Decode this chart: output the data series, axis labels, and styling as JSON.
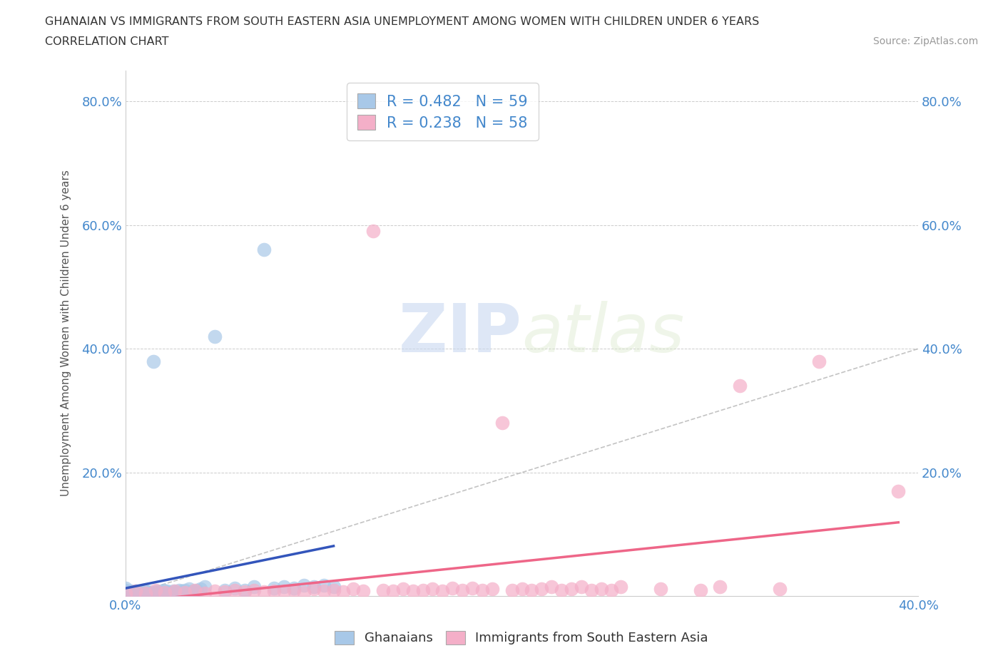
{
  "title_line1": "GHANAIAN VS IMMIGRANTS FROM SOUTH EASTERN ASIA UNEMPLOYMENT AMONG WOMEN WITH CHILDREN UNDER 6 YEARS",
  "title_line2": "CORRELATION CHART",
  "source": "Source: ZipAtlas.com",
  "ylabel": "Unemployment Among Women with Children Under 6 years",
  "xlim": [
    0.0,
    0.4
  ],
  "ylim": [
    0.0,
    0.85
  ],
  "xtick_vals": [
    0.0,
    0.1,
    0.2,
    0.3,
    0.4
  ],
  "ytick_vals": [
    0.0,
    0.2,
    0.4,
    0.6,
    0.8
  ],
  "blue_R": 0.482,
  "blue_N": 59,
  "pink_R": 0.238,
  "pink_N": 58,
  "blue_color": "#a8c8e8",
  "pink_color": "#f4afc8",
  "blue_line_color": "#3355bb",
  "pink_line_color": "#ee6688",
  "diagonal_color": "#aaaaaa",
  "tick_label_color": "#4488cc",
  "background_color": "#ffffff",
  "blue_scatter_x": [
    0.0,
    0.0,
    0.0,
    0.0,
    0.0,
    0.0,
    0.001,
    0.001,
    0.002,
    0.002,
    0.003,
    0.003,
    0.004,
    0.004,
    0.005,
    0.005,
    0.006,
    0.007,
    0.008,
    0.008,
    0.009,
    0.01,
    0.01,
    0.011,
    0.012,
    0.013,
    0.014,
    0.015,
    0.016,
    0.017,
    0.018,
    0.019,
    0.02,
    0.021,
    0.022,
    0.024,
    0.025,
    0.027,
    0.028,
    0.029,
    0.03,
    0.032,
    0.034,
    0.036,
    0.038,
    0.04,
    0.045,
    0.05,
    0.055,
    0.06,
    0.065,
    0.07,
    0.075,
    0.08,
    0.085,
    0.09,
    0.095,
    0.1,
    0.105
  ],
  "blue_scatter_y": [
    0.0,
    0.003,
    0.005,
    0.008,
    0.01,
    0.013,
    0.0,
    0.005,
    0.0,
    0.007,
    0.003,
    0.008,
    0.0,
    0.005,
    0.002,
    0.008,
    0.004,
    0.006,
    0.0,
    0.007,
    0.005,
    0.003,
    0.009,
    0.005,
    0.007,
    0.004,
    0.38,
    0.006,
    0.008,
    0.005,
    0.007,
    0.01,
    0.005,
    0.008,
    0.006,
    0.009,
    0.007,
    0.01,
    0.008,
    0.006,
    0.01,
    0.012,
    0.008,
    0.01,
    0.012,
    0.015,
    0.42,
    0.01,
    0.013,
    0.01,
    0.015,
    0.56,
    0.013,
    0.015,
    0.013,
    0.018,
    0.015,
    0.018,
    0.015
  ],
  "pink_scatter_x": [
    0.0,
    0.005,
    0.01,
    0.015,
    0.02,
    0.025,
    0.03,
    0.035,
    0.04,
    0.045,
    0.05,
    0.055,
    0.06,
    0.065,
    0.07,
    0.075,
    0.08,
    0.085,
    0.09,
    0.095,
    0.1,
    0.105,
    0.11,
    0.115,
    0.12,
    0.125,
    0.13,
    0.135,
    0.14,
    0.145,
    0.15,
    0.155,
    0.16,
    0.165,
    0.17,
    0.175,
    0.18,
    0.185,
    0.19,
    0.195,
    0.2,
    0.205,
    0.21,
    0.215,
    0.22,
    0.225,
    0.23,
    0.235,
    0.24,
    0.245,
    0.25,
    0.27,
    0.29,
    0.3,
    0.31,
    0.33,
    0.35,
    0.39
  ],
  "pink_scatter_y": [
    0.005,
    0.008,
    0.005,
    0.01,
    0.006,
    0.008,
    0.006,
    0.01,
    0.005,
    0.008,
    0.007,
    0.01,
    0.007,
    0.01,
    0.007,
    0.009,
    0.008,
    0.01,
    0.006,
    0.012,
    0.008,
    0.01,
    0.007,
    0.012,
    0.009,
    0.59,
    0.01,
    0.008,
    0.012,
    0.008,
    0.01,
    0.012,
    0.008,
    0.013,
    0.01,
    0.013,
    0.01,
    0.012,
    0.28,
    0.01,
    0.012,
    0.01,
    0.012,
    0.015,
    0.01,
    0.012,
    0.015,
    0.01,
    0.012,
    0.01,
    0.015,
    0.012,
    0.01,
    0.015,
    0.34,
    0.012,
    0.38,
    0.17
  ]
}
